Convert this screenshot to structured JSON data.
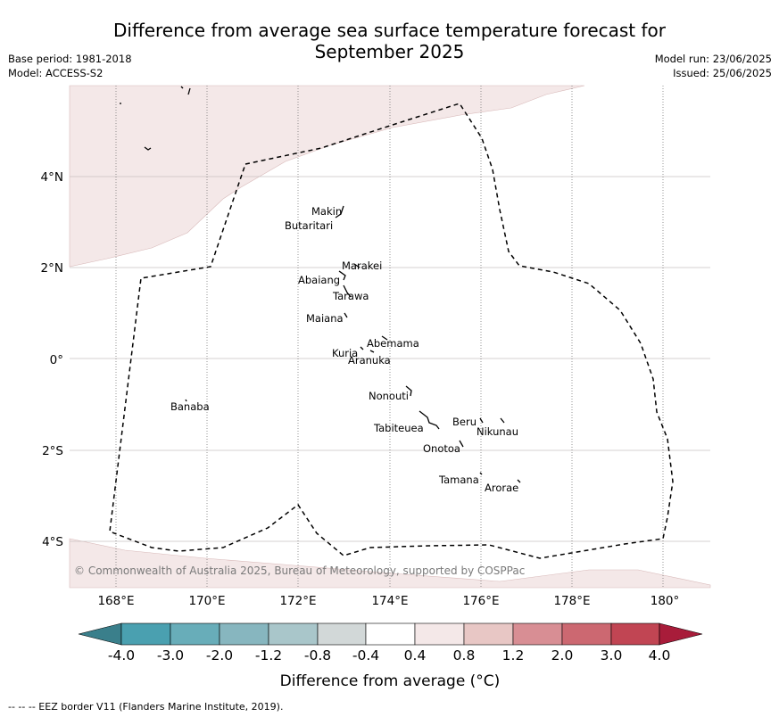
{
  "header": {
    "title_line1": "Difference from average sea surface temperature forecast for",
    "title_line2": "September 2025",
    "base_period": "Base period: 1981-2018",
    "model": "Model: ACCESS-S2",
    "model_run": "Model run: 23/06/2025",
    "issued": "Issued: 25/06/2025"
  },
  "map": {
    "lat_labels": [
      "4°N",
      "2°N",
      "0°",
      "2°S",
      "4°S"
    ],
    "lon_labels": [
      "168°E",
      "170°E",
      "172°E",
      "174°E",
      "176°E",
      "178°E",
      "180°"
    ],
    "islands": [
      "Makin",
      "Butaritari",
      "Marakei",
      "Abaiang",
      "Tarawa",
      "Maiana",
      "Abemama",
      "Kuria",
      "Aranuka",
      "Banaba",
      "Nonouti",
      "Beru",
      "Nikunau",
      "Tabiteuea",
      "Onotoa",
      "Tamana",
      "Arorae"
    ],
    "copyright": "© Commonwealth of Australia 2025, Bureau of Meteorology, supported by COSPPac",
    "anomaly_shading_color": "#f4e8e8",
    "eez_line_color": "#000000"
  },
  "colorbar": {
    "ticks": [
      "-4.0",
      "-3.0",
      "-2.0",
      "-1.2",
      "-0.8",
      "-0.4",
      "0.4",
      "0.8",
      "1.2",
      "2.0",
      "3.0",
      "4.0"
    ],
    "colors": [
      "#3a7f8b",
      "#4aa0b0",
      "#68adb9",
      "#87b6bf",
      "#a9c6ca",
      "#d2d8d8",
      "#ffffff",
      "#f4e8e8",
      "#e8c7c5",
      "#d88e94",
      "#cc6871",
      "#c14553",
      "#a81c3a"
    ],
    "title": "Difference from average (°C)"
  },
  "footer": {
    "legend": "-- -- -- EEZ border V11 (Flanders Marine Institute, 2019)."
  }
}
